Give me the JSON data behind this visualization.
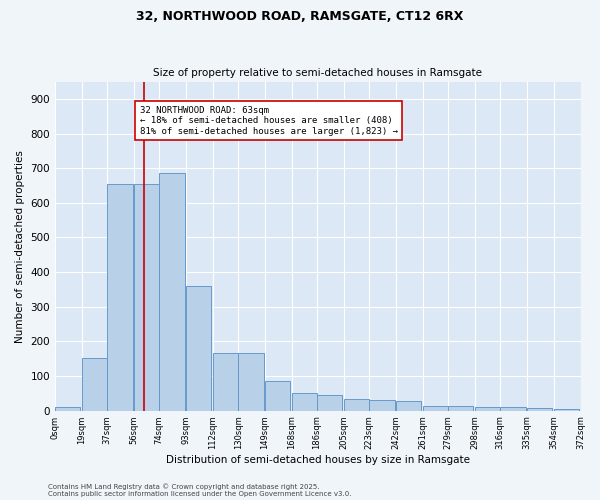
{
  "title1": "32, NORTHWOOD ROAD, RAMSGATE, CT12 6RX",
  "title2": "Size of property relative to semi-detached houses in Ramsgate",
  "xlabel": "Distribution of semi-detached houses by size in Ramsgate",
  "ylabel": "Number of semi-detached properties",
  "property_size": 63,
  "bin_width": 18,
  "bin_starts": [
    0,
    19,
    37,
    56,
    74,
    93,
    112,
    130,
    149,
    168,
    186,
    205,
    223,
    242,
    261,
    279,
    298,
    316,
    335,
    354
  ],
  "bin_labels": [
    "0sqm",
    "19sqm",
    "37sqm",
    "56sqm",
    "74sqm",
    "93sqm",
    "112sqm",
    "130sqm",
    "149sqm",
    "168sqm",
    "186sqm",
    "205sqm",
    "223sqm",
    "242sqm",
    "261sqm",
    "279sqm",
    "298sqm",
    "316sqm",
    "335sqm",
    "354sqm",
    "372sqm"
  ],
  "counts": [
    10,
    152,
    655,
    655,
    685,
    360,
    167,
    167,
    87,
    50,
    45,
    35,
    30,
    27,
    15,
    15,
    10,
    10,
    7,
    5
  ],
  "bar_color": "#b8d0e8",
  "bar_edge_color": "#6699cc",
  "line_color": "#cc0000",
  "annotation_text": "32 NORTHWOOD ROAD: 63sqm\n← 18% of semi-detached houses are smaller (408)\n81% of semi-detached houses are larger (1,823) →",
  "annotation_box_color": "#ffffff",
  "annotation_box_edge": "#cc0000",
  "footer1": "Contains HM Land Registry data © Crown copyright and database right 2025.",
  "footer2": "Contains public sector information licensed under the Open Government Licence v3.0.",
  "background_color": "#dce8f5",
  "fig_bg_color": "#f0f5fa",
  "ylim": [
    0,
    950
  ],
  "yticks": [
    0,
    100,
    200,
    300,
    400,
    500,
    600,
    700,
    800,
    900
  ]
}
